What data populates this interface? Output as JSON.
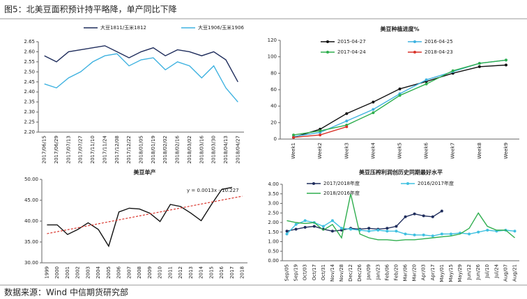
{
  "header": {
    "title": "图5：北美豆面积预计持平略降，单产同比下降"
  },
  "footer": {
    "source": "数据来源：Wind 中信期货研究部"
  },
  "chart_data": [
    {
      "type": "line",
      "categories": [
        "2017/06/15",
        "2017/06/29",
        "2017/07/13",
        "2017/07/27",
        "2017/11/10",
        "2017/11/24",
        "2017/12/08",
        "2017/12/22",
        "2018/01/05",
        "2018/01/19",
        "2018/02/02",
        "2018/02/16",
        "2018/03/02",
        "2018/03/16",
        "2018/03/30",
        "2018/04/13",
        "2018/04/27"
      ],
      "series": [
        {
          "name": "大豆1811/玉米1812",
          "color": "#1f2d5c",
          "values": [
            2.58,
            2.55,
            2.6,
            2.61,
            2.62,
            2.63,
            2.6,
            2.57,
            2.6,
            2.62,
            2.58,
            2.61,
            2.6,
            2.58,
            2.6,
            2.56,
            2.45
          ]
        },
        {
          "name": "大豆1906/玉米1906",
          "color": "#3fb2e0",
          "values": [
            2.44,
            2.42,
            2.47,
            2.5,
            2.55,
            2.58,
            2.59,
            2.53,
            2.56,
            2.57,
            2.51,
            2.55,
            2.53,
            2.47,
            2.53,
            2.42,
            2.35
          ]
        }
      ],
      "ylim": [
        2.2,
        2.65
      ],
      "yticks": [
        {
          "value": 2.2,
          "label": "2.20"
        },
        {
          "value": 2.25,
          "label": "2.25"
        },
        {
          "value": 2.3,
          "label": "2.30"
        },
        {
          "value": 2.35,
          "label": "2.35"
        },
        {
          "value": 2.4,
          "label": "2.40"
        },
        {
          "value": 2.45,
          "label": "2.45"
        },
        {
          "value": 2.5,
          "label": "2.50"
        },
        {
          "value": 2.55,
          "label": "2.55"
        },
        {
          "value": 2.6,
          "label": "2.60"
        },
        {
          "value": 2.65,
          "label": "2.65"
        }
      ]
    },
    {
      "type": "line",
      "title": "美豆种植进度%",
      "categories": [
        "Week1",
        "Week2",
        "Week3",
        "Week4",
        "Week5",
        "Week6",
        "Week7",
        "Week8",
        "Week9"
      ],
      "series": [
        {
          "name": "2015-04-27",
          "color": "#111111",
          "marker": true,
          "values": [
            2,
            12,
            31,
            45,
            61,
            70,
            80,
            88,
            90
          ]
        },
        {
          "name": "2016-04-25",
          "color": "#3fb2e0",
          "marker": true,
          "values": [
            3,
            8,
            22,
            36,
            55,
            72,
            82,
            92,
            96
          ]
        },
        {
          "name": "2017-04-24",
          "color": "#2fae4e",
          "marker": true,
          "values": [
            5,
            10,
            17,
            32,
            53,
            67,
            83,
            92,
            96
          ]
        },
        {
          "name": "2018-04-23",
          "color": "#d9342b",
          "marker": true,
          "values": [
            2,
            5,
            15,
            null,
            null,
            null,
            null,
            null,
            null
          ]
        }
      ],
      "ylim": [
        0,
        120
      ],
      "yticks": [
        0,
        20,
        40,
        60,
        80,
        100,
        120
      ]
    },
    {
      "type": "line",
      "title": "美豆单产",
      "color": "#111111",
      "trendline": true,
      "trend_color": "#d9342b",
      "annotation": "y = 0.0013x - 10.227",
      "categories": [
        "1999",
        "2000",
        "2001",
        "2002",
        "2003",
        "2004",
        "2005",
        "2006",
        "2007",
        "2008",
        "2009",
        "2010",
        "2011",
        "2012",
        "2013",
        "2014",
        "2015",
        "2016",
        "2017",
        "2018"
      ],
      "values": [
        39.1,
        39.1,
        36.8,
        38.0,
        39.6,
        38.0,
        34.0,
        42.2,
        43.1,
        42.9,
        41.9,
        39.9,
        44.0,
        43.5,
        41.9,
        40.1,
        44.0,
        47.6,
        48.1,
        null
      ],
      "ylim": [
        30,
        50
      ],
      "yticks": [
        {
          "value": 30,
          "label": "30.00"
        },
        {
          "value": 35,
          "label": "35.00"
        },
        {
          "value": 40,
          "label": "40.00"
        },
        {
          "value": 45,
          "label": "45.00"
        },
        {
          "value": 50,
          "label": "50.00"
        }
      ]
    },
    {
      "type": "line",
      "title": "美豆压榨利润创历史同期最好水平",
      "categories": [
        "Sep/05",
        "Sep/19",
        "Oct/03",
        "Oct/17",
        "Oct/31",
        "Nov/14",
        "Nov/28",
        "Dec/12",
        "Dec/26",
        "Jan/09",
        "Jan/23",
        "Feb/06",
        "Feb/20",
        "Mar/06",
        "Mar/20",
        "Apr/03",
        "Apr/17",
        "May/01",
        "May/15",
        "May/29",
        "Jun/12",
        "Jun/26",
        "Jul/10",
        "Jul/24",
        "Aug/07",
        "Aug/21"
      ],
      "series": [
        {
          "name": "2017/2018年度",
          "color": "#1f2d5c",
          "marker": true,
          "values": [
            1.55,
            1.65,
            1.75,
            1.8,
            1.65,
            1.55,
            1.6,
            1.7,
            1.65,
            1.7,
            1.65,
            1.7,
            1.8,
            2.3,
            2.45,
            2.35,
            2.3,
            2.6,
            null,
            null,
            null,
            null,
            null,
            null,
            null,
            null
          ]
        },
        {
          "name": "2016/2017年度",
          "color": "#3fc0e0",
          "marker": true,
          "values": [
            1.4,
            1.9,
            2.1,
            2.0,
            1.8,
            2.1,
            1.7,
            1.65,
            1.6,
            1.55,
            1.6,
            1.55,
            1.55,
            1.4,
            1.35,
            1.35,
            1.3,
            1.4,
            1.4,
            1.45,
            1.4,
            1.5,
            1.6,
            1.55,
            1.6,
            1.55
          ]
        },
        {
          "name": "2018/2016年度",
          "color": "#2fae4e",
          "values": [
            2.1,
            2.0,
            1.95,
            2.0,
            1.6,
            1.9,
            1.2,
            3.5,
            1.4,
            1.2,
            1.1,
            1.1,
            1.05,
            1.1,
            1.1,
            1.15,
            1.2,
            1.25,
            1.3,
            1.4,
            1.7,
            2.5,
            1.8,
            1.6,
            1.6,
            1.2
          ]
        }
      ],
      "ylim": [
        0,
        4
      ],
      "yticks": [
        {
          "value": 0,
          "label": "0.00"
        },
        {
          "value": 0.5,
          "label": "0.50"
        },
        {
          "value": 1,
          "label": "1.00"
        },
        {
          "value": 1.5,
          "label": "1.50"
        },
        {
          "value": 2,
          "label": "2.00"
        },
        {
          "value": 2.5,
          "label": "2.50"
        },
        {
          "value": 3,
          "label": "3.00"
        },
        {
          "value": 3.5,
          "label": "3.50"
        },
        {
          "value": 4,
          "label": "4.00"
        }
      ]
    }
  ]
}
